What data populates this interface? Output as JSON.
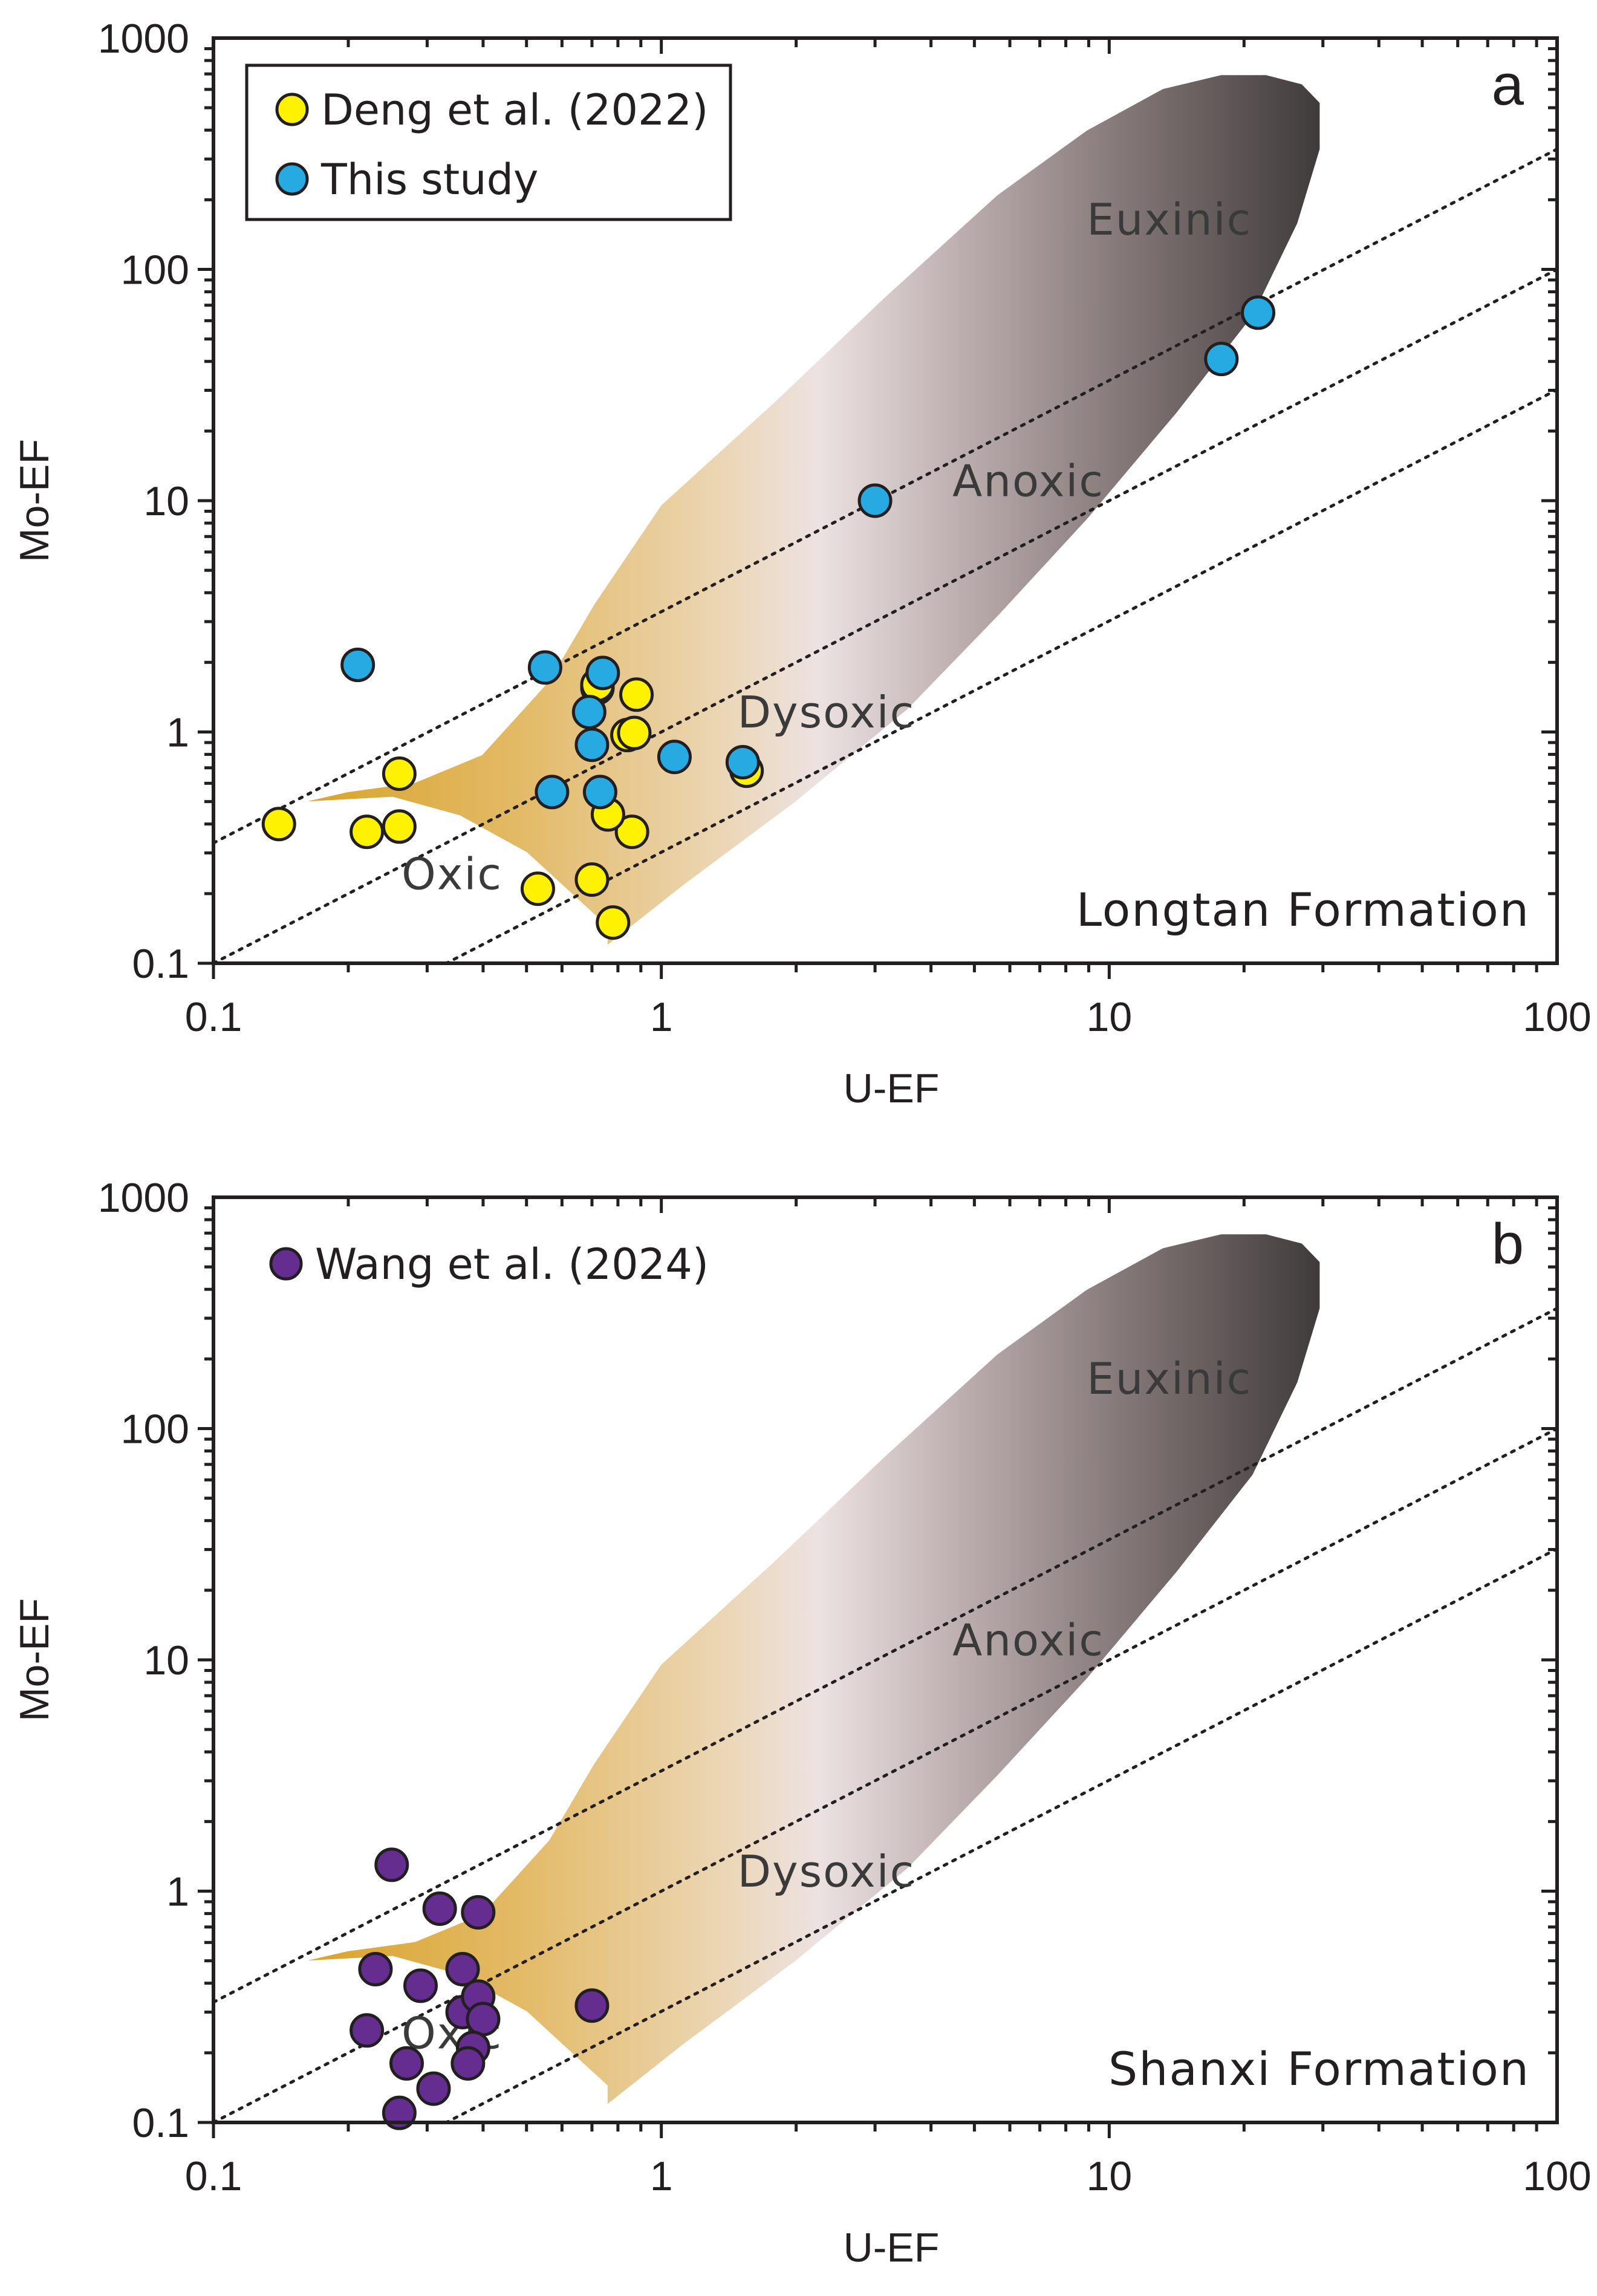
{
  "chart_data": [
    {
      "type": "scatter",
      "panel": "a",
      "title": "",
      "xlabel": "U-EF",
      "ylabel": "Mo-EF",
      "xscale": "log",
      "yscale": "log",
      "xlim": [
        0.1,
        100
      ],
      "ylim": [
        0.1,
        1000
      ],
      "x_ticks": [
        "0.1",
        "1",
        "10",
        "100"
      ],
      "y_ticks": [
        "0.1",
        "1",
        "10",
        "100",
        "1000"
      ],
      "formation": "Longtan Formation",
      "region_labels": [
        "Euxinic",
        "Anoxic",
        "Dysoxic",
        "Oxic"
      ],
      "reference_lines": [
        {
          "name": "Mo/U = 3 x seawater",
          "slope_factor": 3.3
        },
        {
          "name": "Mo/U = 1 x seawater",
          "slope_factor": 1.0
        },
        {
          "name": "Mo/U = 0.3 x seawater",
          "slope_factor": 0.3
        }
      ],
      "legend": [
        {
          "name": "Deng et al. (2022)",
          "color": "#fff200"
        },
        {
          "name": "This study",
          "color": "#27aae1"
        }
      ],
      "series": [
        {
          "name": "Deng et al. (2022)",
          "color": "#fff200",
          "x": [
            0.14,
            0.22,
            0.26,
            0.26,
            0.53,
            0.7,
            0.78,
            0.86,
            0.76,
            0.72,
            0.88,
            0.84,
            0.87,
            0.72,
            1.55
          ],
          "y": [
            0.4,
            0.37,
            0.39,
            0.66,
            0.21,
            0.23,
            0.15,
            0.37,
            0.44,
            1.55,
            1.45,
            0.97,
            0.99,
            1.6,
            0.68
          ]
        },
        {
          "name": "This study",
          "color": "#27aae1",
          "x": [
            0.21,
            0.55,
            0.74,
            0.69,
            0.7,
            0.57,
            0.73,
            1.07,
            1.52,
            3.0,
            17.8,
            21.5
          ],
          "y": [
            1.95,
            1.9,
            1.8,
            1.22,
            0.88,
            0.55,
            0.55,
            0.78,
            0.74,
            10.0,
            41.0,
            65.0
          ]
        }
      ]
    },
    {
      "type": "scatter",
      "panel": "b",
      "title": "",
      "xlabel": "U-EF",
      "ylabel": "Mo-EF",
      "xscale": "log",
      "yscale": "log",
      "xlim": [
        0.1,
        100
      ],
      "ylim": [
        0.1,
        1000
      ],
      "x_ticks": [
        "0.1",
        "1",
        "10",
        "100"
      ],
      "y_ticks": [
        "0.1",
        "1",
        "10",
        "100",
        "1000"
      ],
      "formation": "Shanxi Formation",
      "region_labels": [
        "Euxinic",
        "Anoxic",
        "Dysoxic",
        "Oxic"
      ],
      "reference_lines": [
        {
          "name": "Mo/U = 3 x seawater",
          "slope_factor": 3.3
        },
        {
          "name": "Mo/U = 1 x seawater",
          "slope_factor": 1.0
        },
        {
          "name": "Mo/U = 0.3 x seawater",
          "slope_factor": 0.3
        }
      ],
      "legend": [
        {
          "name": "Wang et al. (2024)",
          "color": "#652d90"
        }
      ],
      "series": [
        {
          "name": "Wang et al. (2024)",
          "color": "#652d90",
          "x": [
            0.25,
            0.32,
            0.39,
            0.23,
            0.36,
            0.29,
            0.36,
            0.39,
            0.4,
            0.38,
            0.37,
            0.7,
            0.22,
            0.27,
            0.31,
            0.26
          ],
          "y": [
            1.3,
            0.84,
            0.81,
            0.46,
            0.46,
            0.39,
            0.3,
            0.35,
            0.28,
            0.21,
            0.18,
            0.32,
            0.25,
            0.18,
            0.14,
            0.11
          ]
        }
      ]
    }
  ]
}
